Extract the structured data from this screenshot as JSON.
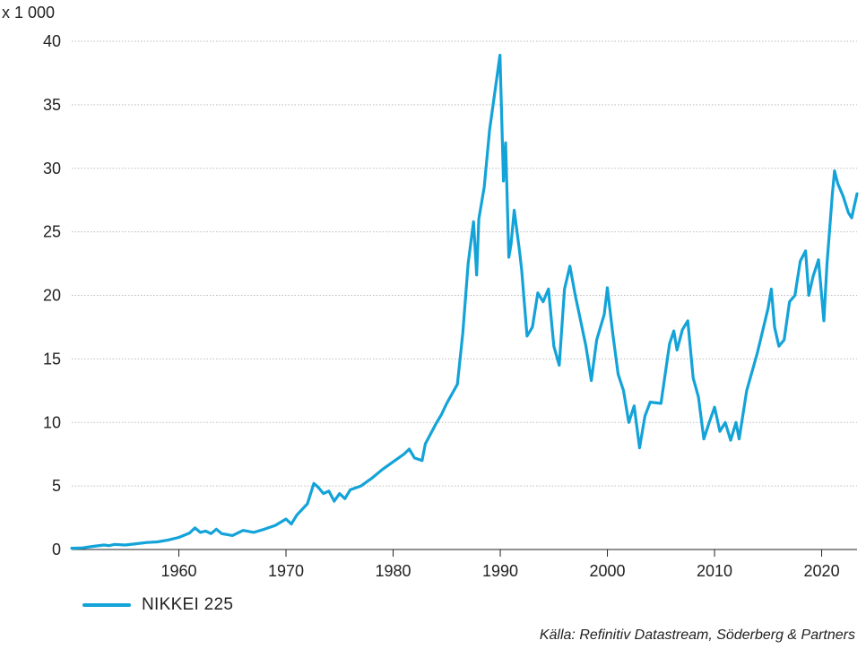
{
  "chart_data": {
    "type": "line",
    "unit_label": "x 1 000",
    "ylim": [
      0,
      40
    ],
    "yticks": [
      0,
      5,
      10,
      15,
      20,
      25,
      30,
      35,
      40
    ],
    "xlim": [
      1950.0,
      2023.3
    ],
    "xticks": [
      1960,
      1970,
      1980,
      1990,
      2000,
      2010,
      2020
    ],
    "grid": "horizontal-dotted",
    "legend_position": "bottom-left",
    "colors": {
      "series": "#13a3d8",
      "grid": "#bdbdbd",
      "axis": "#222222"
    },
    "series": [
      {
        "name": "NIKKEI 225",
        "points": [
          [
            1950.0,
            0.1
          ],
          [
            1951.0,
            0.13
          ],
          [
            1952.0,
            0.25
          ],
          [
            1953.0,
            0.35
          ],
          [
            1953.5,
            0.3
          ],
          [
            1954.0,
            0.4
          ],
          [
            1955.0,
            0.35
          ],
          [
            1956.0,
            0.45
          ],
          [
            1957.0,
            0.55
          ],
          [
            1958.0,
            0.6
          ],
          [
            1959.0,
            0.75
          ],
          [
            1960.0,
            0.95
          ],
          [
            1961.0,
            1.3
          ],
          [
            1961.5,
            1.7
          ],
          [
            1962.0,
            1.35
          ],
          [
            1962.5,
            1.45
          ],
          [
            1963.0,
            1.25
          ],
          [
            1963.5,
            1.6
          ],
          [
            1964.0,
            1.25
          ],
          [
            1965.0,
            1.1
          ],
          [
            1966.0,
            1.5
          ],
          [
            1967.0,
            1.35
          ],
          [
            1968.0,
            1.6
          ],
          [
            1969.0,
            1.9
          ],
          [
            1970.0,
            2.4
          ],
          [
            1970.5,
            2.0
          ],
          [
            1971.0,
            2.7
          ],
          [
            1972.0,
            3.6
          ],
          [
            1972.6,
            5.2
          ],
          [
            1973.0,
            4.9
          ],
          [
            1973.5,
            4.4
          ],
          [
            1974.0,
            4.6
          ],
          [
            1974.5,
            3.8
          ],
          [
            1975.0,
            4.4
          ],
          [
            1975.5,
            4.0
          ],
          [
            1976.0,
            4.7
          ],
          [
            1977.0,
            5.0
          ],
          [
            1978.0,
            5.6
          ],
          [
            1979.0,
            6.3
          ],
          [
            1980.0,
            6.9
          ],
          [
            1981.0,
            7.5
          ],
          [
            1981.5,
            7.9
          ],
          [
            1982.0,
            7.2
          ],
          [
            1982.7,
            7.0
          ],
          [
            1983.0,
            8.3
          ],
          [
            1984.0,
            9.9
          ],
          [
            1984.5,
            10.6
          ],
          [
            1985.0,
            11.5
          ],
          [
            1986.0,
            13.0
          ],
          [
            1986.5,
            17.0
          ],
          [
            1987.0,
            22.5
          ],
          [
            1987.5,
            25.8
          ],
          [
            1987.8,
            21.6
          ],
          [
            1988.0,
            26.0
          ],
          [
            1988.5,
            28.5
          ],
          [
            1989.0,
            33.0
          ],
          [
            1989.97,
            38.9
          ],
          [
            1990.3,
            29.0
          ],
          [
            1990.5,
            32.0
          ],
          [
            1990.8,
            23.0
          ],
          [
            1991.0,
            24.0
          ],
          [
            1991.3,
            26.7
          ],
          [
            1991.8,
            23.5
          ],
          [
            1992.0,
            22.0
          ],
          [
            1992.5,
            16.8
          ],
          [
            1993.0,
            17.5
          ],
          [
            1993.5,
            20.2
          ],
          [
            1994.0,
            19.5
          ],
          [
            1994.5,
            20.5
          ],
          [
            1995.0,
            16.0
          ],
          [
            1995.5,
            14.5
          ],
          [
            1996.0,
            20.5
          ],
          [
            1996.5,
            22.3
          ],
          [
            1997.0,
            20.0
          ],
          [
            1997.5,
            18.0
          ],
          [
            1998.0,
            16.0
          ],
          [
            1998.5,
            13.3
          ],
          [
            1999.0,
            16.5
          ],
          [
            1999.7,
            18.5
          ],
          [
            2000.0,
            20.6
          ],
          [
            2000.5,
            17.0
          ],
          [
            2001.0,
            13.8
          ],
          [
            2001.5,
            12.5
          ],
          [
            2002.0,
            10.0
          ],
          [
            2002.5,
            11.3
          ],
          [
            2003.0,
            8.0
          ],
          [
            2003.5,
            10.5
          ],
          [
            2004.0,
            11.6
          ],
          [
            2005.0,
            11.5
          ],
          [
            2005.8,
            16.2
          ],
          [
            2006.2,
            17.2
          ],
          [
            2006.5,
            15.7
          ],
          [
            2007.0,
            17.3
          ],
          [
            2007.5,
            18.0
          ],
          [
            2008.0,
            13.5
          ],
          [
            2008.5,
            12.0
          ],
          [
            2009.0,
            8.7
          ],
          [
            2009.5,
            10.0
          ],
          [
            2010.0,
            11.2
          ],
          [
            2010.5,
            9.3
          ],
          [
            2011.0,
            10.0
          ],
          [
            2011.5,
            8.6
          ],
          [
            2012.0,
            10.0
          ],
          [
            2012.3,
            8.7
          ],
          [
            2013.0,
            12.5
          ],
          [
            2013.5,
            14.0
          ],
          [
            2014.0,
            15.5
          ],
          [
            2015.0,
            19.0
          ],
          [
            2015.3,
            20.5
          ],
          [
            2015.6,
            17.5
          ],
          [
            2016.0,
            16.0
          ],
          [
            2016.5,
            16.5
          ],
          [
            2017.0,
            19.5
          ],
          [
            2017.5,
            20.0
          ],
          [
            2018.0,
            22.7
          ],
          [
            2018.5,
            23.5
          ],
          [
            2018.8,
            20.0
          ],
          [
            2019.2,
            21.5
          ],
          [
            2019.7,
            22.8
          ],
          [
            2020.2,
            18.0
          ],
          [
            2020.5,
            22.5
          ],
          [
            2021.0,
            28.0
          ],
          [
            2021.2,
            29.8
          ],
          [
            2021.5,
            28.8
          ],
          [
            2022.0,
            27.8
          ],
          [
            2022.5,
            26.5
          ],
          [
            2022.8,
            26.1
          ],
          [
            2023.3,
            28.0
          ]
        ]
      }
    ]
  },
  "legend": {
    "label": "NIKKEI 225"
  },
  "source": "Källa: Refinitiv Datastream, Söderberg & Partners"
}
